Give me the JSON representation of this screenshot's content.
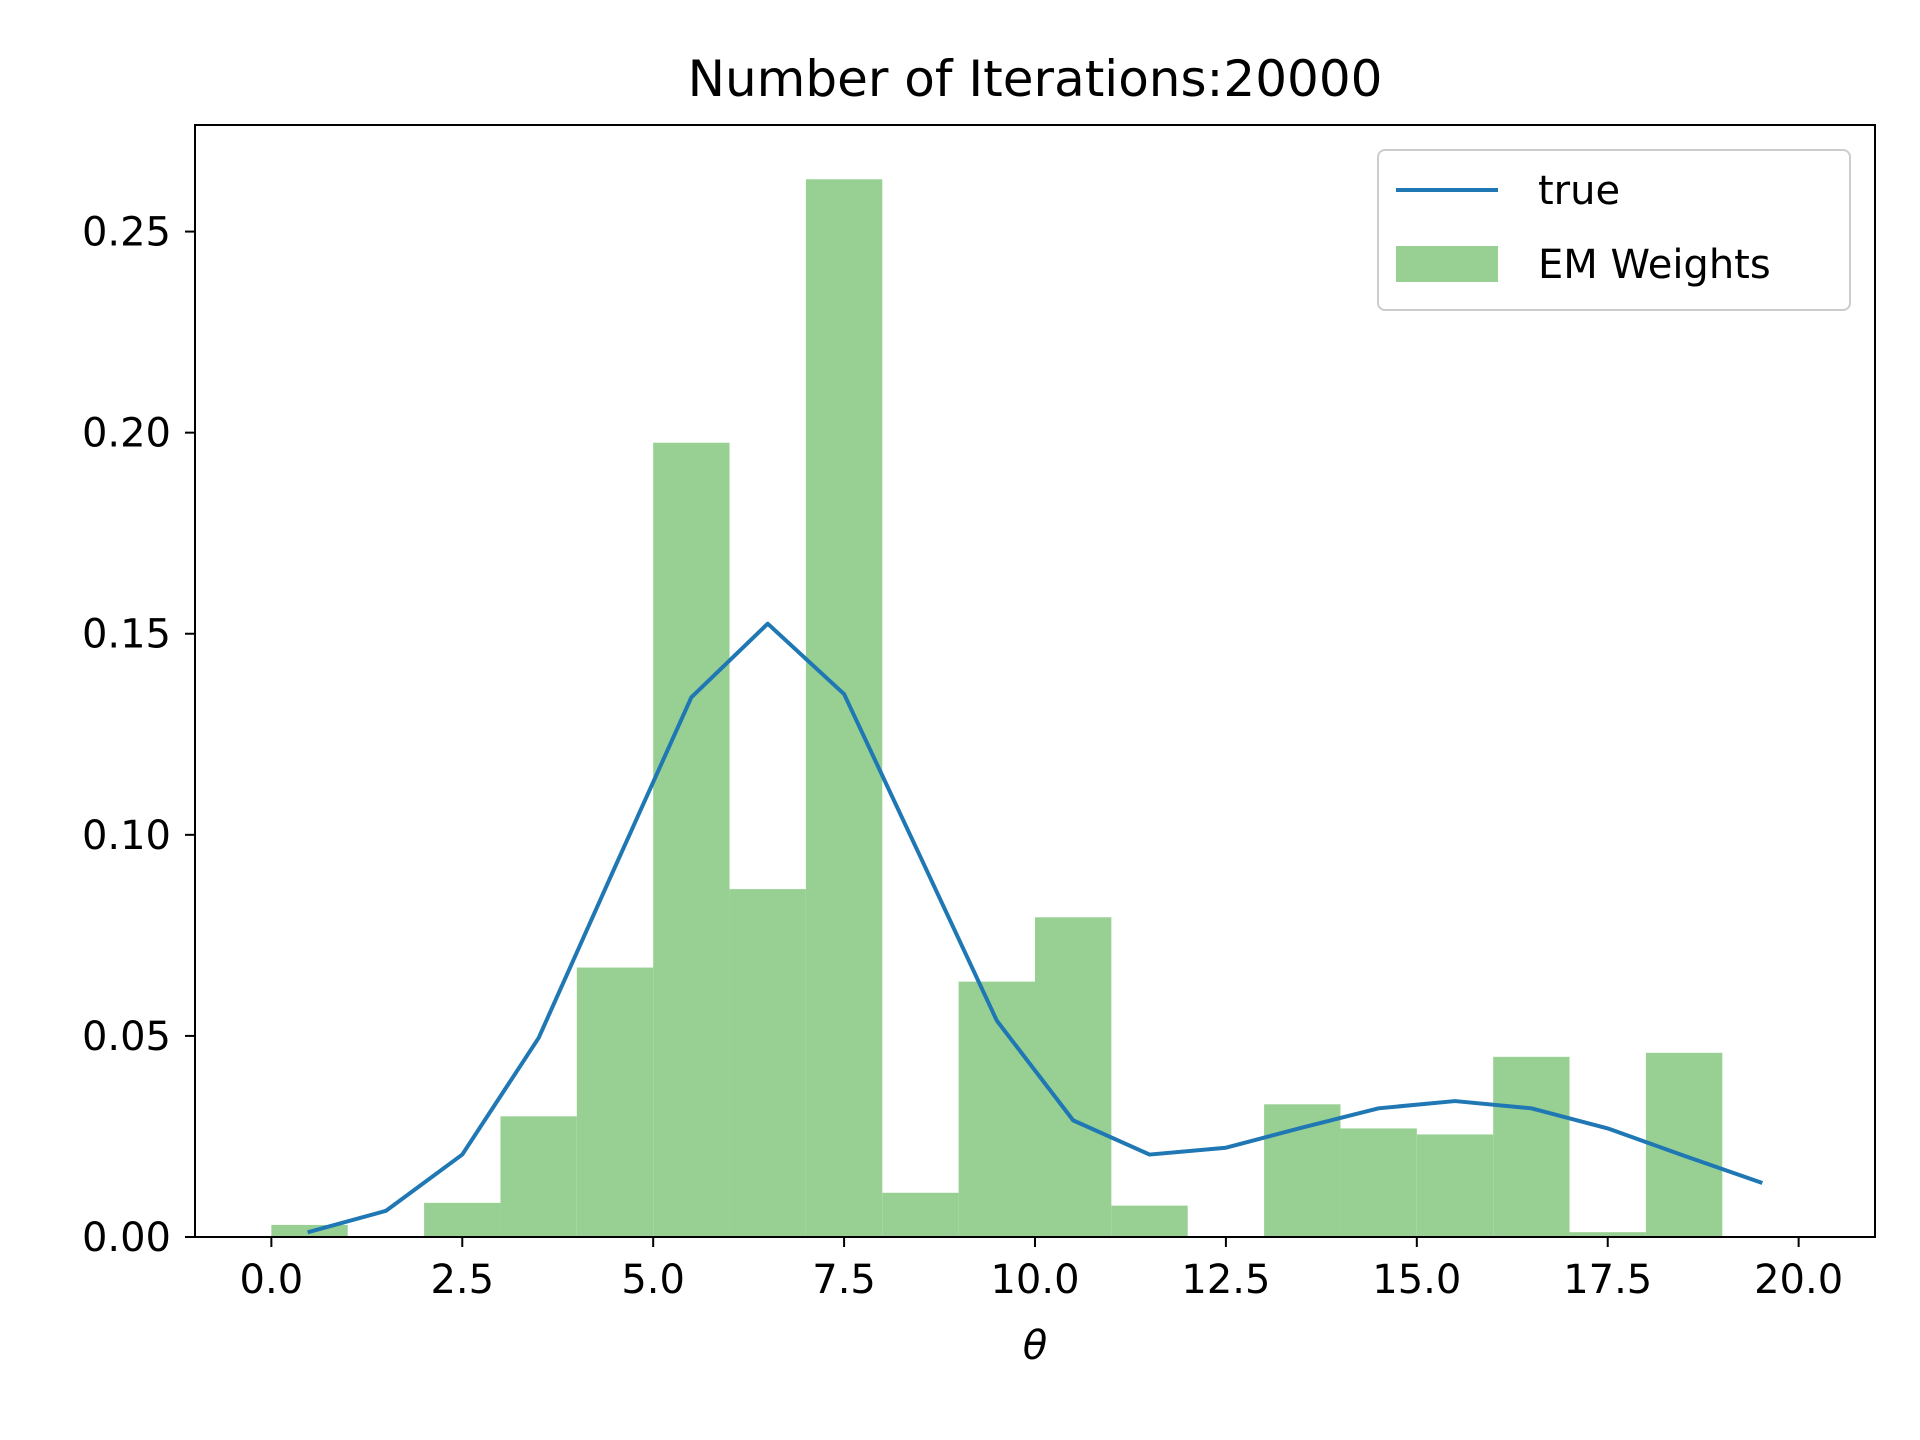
{
  "chart_data": {
    "type": "bar",
    "title": "Number of Iterations:20000",
    "xlabel": "θ",
    "ylabel": "",
    "xlim": [
      -1,
      21
    ],
    "ylim": [
      0,
      0.2765
    ],
    "x_ticks": [
      0.0,
      2.5,
      5.0,
      7.5,
      10.0,
      12.5,
      15.0,
      17.5,
      20.0
    ],
    "x_tick_labels": [
      "0.0",
      "2.5",
      "5.0",
      "7.5",
      "10.0",
      "12.5",
      "15.0",
      "17.5",
      "20.0"
    ],
    "y_ticks": [
      0.0,
      0.05,
      0.1,
      0.15,
      0.2,
      0.25
    ],
    "y_tick_labels": [
      "0.00",
      "0.05",
      "0.10",
      "0.15",
      "0.20",
      "0.25"
    ],
    "grid": false,
    "legend_position": "top-right",
    "series": [
      {
        "name": "EM Weights",
        "kind": "histogram",
        "color": "#98d093",
        "bin_edges": [
          0,
          1,
          2,
          3,
          4,
          5,
          6,
          7,
          8,
          9,
          10,
          11,
          12,
          13,
          14,
          15,
          16,
          17,
          18,
          19
        ],
        "values": [
          0.003,
          0.0,
          0.0085,
          0.03,
          0.067,
          0.1975,
          0.0865,
          0.263,
          0.011,
          0.0635,
          0.0795,
          0.0078,
          0.0,
          0.033,
          0.027,
          0.0255,
          0.0448,
          0.0012,
          0.0458
        ]
      },
      {
        "name": "true",
        "kind": "line",
        "color": "#1f77b4",
        "x": [
          0.5,
          1.5,
          2.5,
          3.5,
          4.5,
          5.5,
          6.5,
          7.5,
          8.5,
          9.5,
          10.5,
          11.5,
          12.5,
          13.5,
          14.5,
          15.5,
          16.5,
          17.5,
          18.5,
          19.5
        ],
        "y": [
          0.0013,
          0.0065,
          0.0205,
          0.0495,
          0.092,
          0.1342,
          0.1525,
          0.135,
          0.0945,
          0.0538,
          0.029,
          0.0205,
          0.0222,
          0.0272,
          0.032,
          0.0338,
          0.032,
          0.027,
          0.0202,
          0.0136
        ]
      }
    ]
  }
}
